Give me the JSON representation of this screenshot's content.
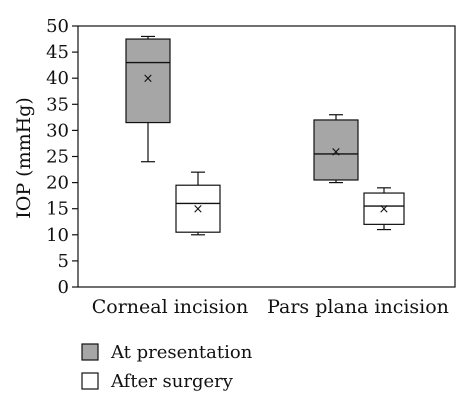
{
  "chart_data": {
    "type": "box",
    "ylabel": "IOP (mmHg)",
    "ylim": [
      0,
      50
    ],
    "yticks": [
      0,
      5,
      10,
      15,
      20,
      25,
      30,
      35,
      40,
      45,
      50
    ],
    "categories": [
      "Corneal incision",
      "Pars plana incision"
    ],
    "series": [
      {
        "name": "At presentation",
        "fill": "#a6a6a6",
        "boxes": [
          {
            "min": 24,
            "q1": 31.5,
            "median": 43,
            "q3": 47.5,
            "max": 48,
            "mean": 40
          },
          {
            "min": 20,
            "q1": 20.5,
            "median": 25.5,
            "q3": 32,
            "max": 33,
            "mean": 26
          }
        ]
      },
      {
        "name": "After surgery",
        "fill": "#ffffff",
        "boxes": [
          {
            "min": 10,
            "q1": 10.5,
            "median": 16,
            "q3": 19.5,
            "max": 22,
            "mean": 15
          },
          {
            "min": 11,
            "q1": 12,
            "median": 15.5,
            "q3": 18,
            "max": 19,
            "mean": 15
          }
        ]
      }
    ],
    "mean_marker": "×",
    "grid": false,
    "legend_position": "bottom-left"
  }
}
